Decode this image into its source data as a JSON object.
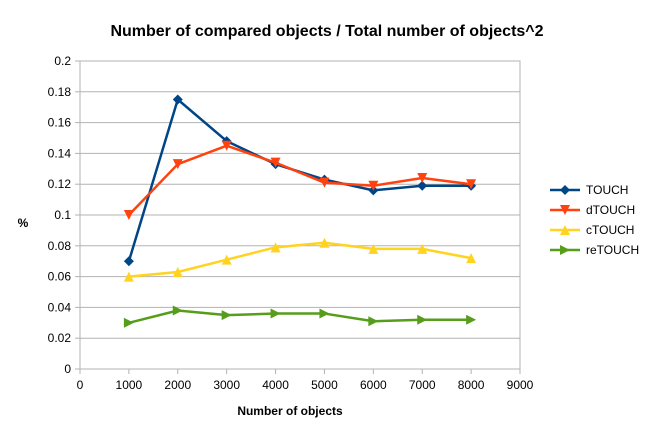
{
  "chart_data": {
    "type": "line",
    "title": "Number of compared objects / Total number of objects^2",
    "xlabel": "Number of objects",
    "ylabel": "%",
    "xlim": [
      0,
      9000
    ],
    "ylim": [
      0,
      0.2
    ],
    "x_ticks": [
      "0",
      "1000",
      "2000",
      "3000",
      "4000",
      "5000",
      "6000",
      "7000",
      "8000",
      "9000"
    ],
    "y_ticks": [
      "0",
      "0.02",
      "0.04",
      "0.06",
      "0.08",
      "0.1",
      "0.12",
      "0.14",
      "0.16",
      "0.18",
      "0.2"
    ],
    "grid": "horizontal",
    "legend_position": "right",
    "x": [
      1000,
      2000,
      3000,
      4000,
      5000,
      6000,
      7000,
      8000
    ],
    "series": [
      {
        "name": "TOUCH",
        "color": "#004586",
        "marker": "diamond",
        "values": [
          0.07,
          0.175,
          0.148,
          0.133,
          0.123,
          0.116,
          0.119,
          0.119
        ]
      },
      {
        "name": "dTOUCH",
        "color": "#ff420e",
        "marker": "triangle-down",
        "values": [
          0.1,
          0.133,
          0.145,
          0.134,
          0.121,
          0.119,
          0.124,
          0.12
        ]
      },
      {
        "name": "cTOUCH",
        "color": "#ffd320",
        "marker": "triangle-up",
        "values": [
          0.06,
          0.063,
          0.071,
          0.079,
          0.082,
          0.078,
          0.078,
          0.072
        ]
      },
      {
        "name": "reTOUCH",
        "color": "#579d1c",
        "marker": "triangle-right",
        "values": [
          0.03,
          0.038,
          0.035,
          0.036,
          0.036,
          0.031,
          0.032,
          0.032
        ]
      }
    ]
  }
}
